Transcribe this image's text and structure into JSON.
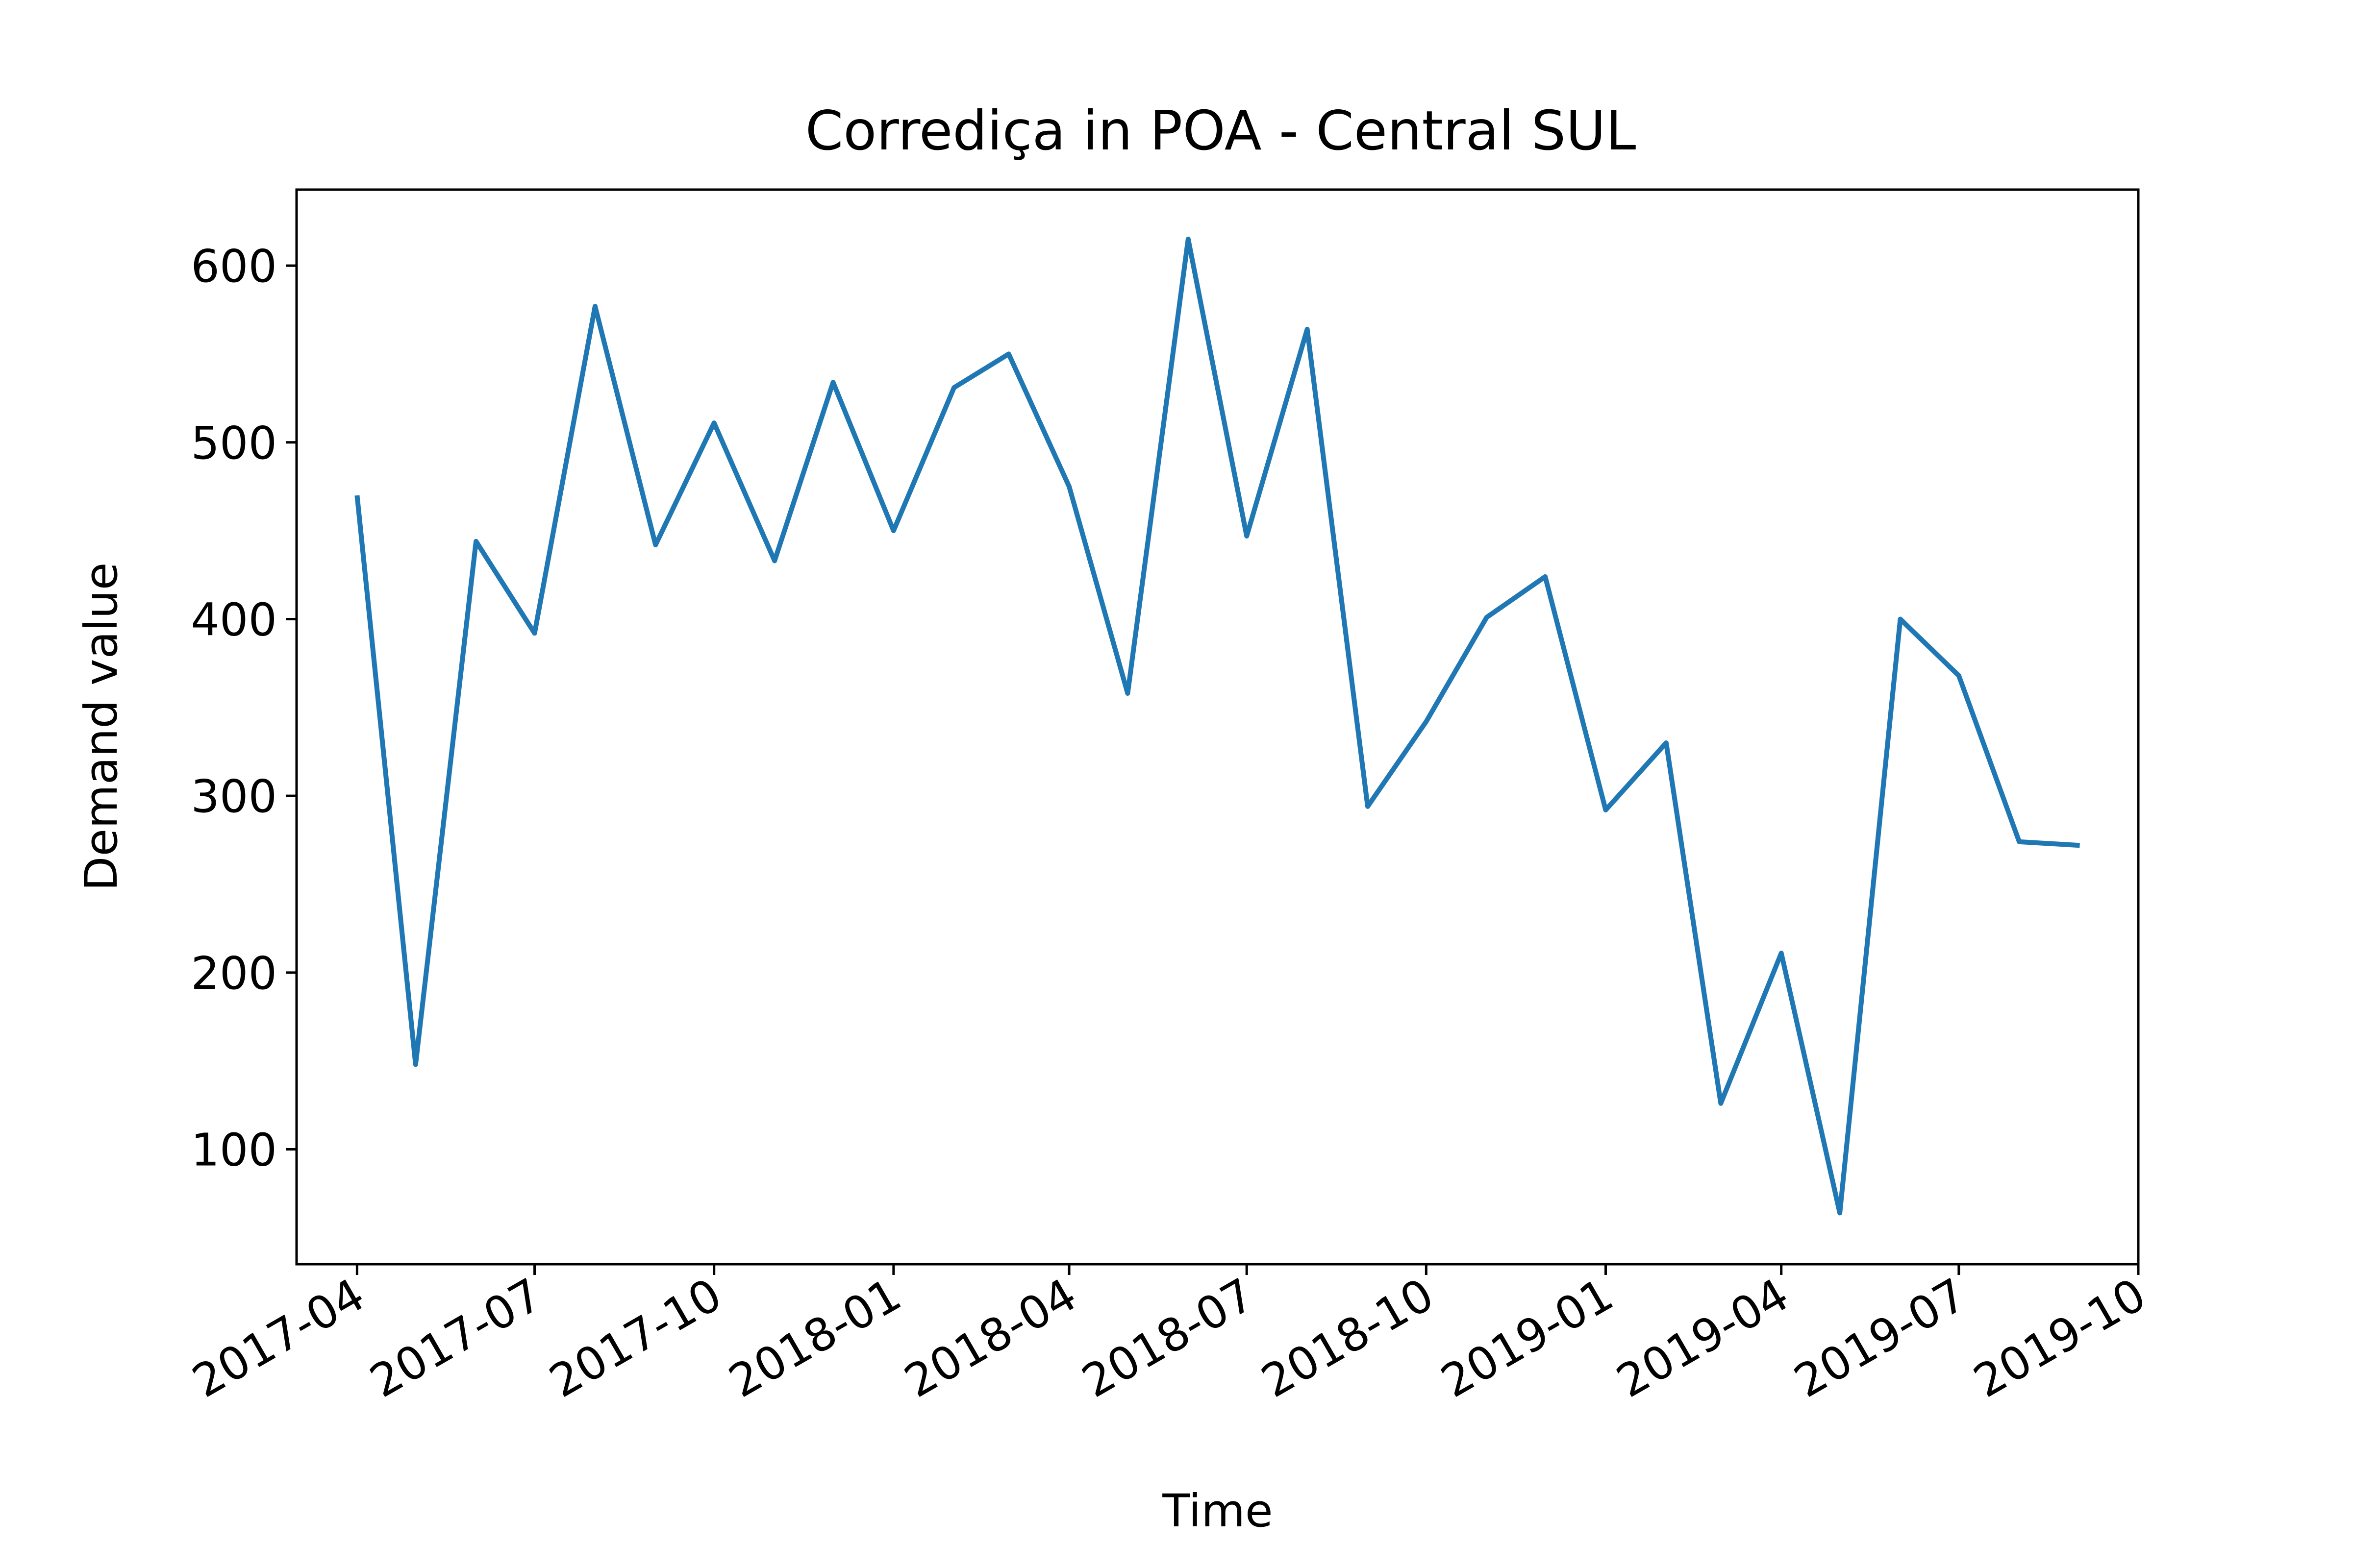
{
  "chart_data": {
    "type": "line",
    "title": "Corrediça in POA - Central SUL",
    "xlabel": "Time",
    "ylabel": "Demand value",
    "xlim": [
      "2017-03-01",
      "2019-10-01"
    ],
    "ylim": [
      35,
      643
    ],
    "x_ticks": [
      "2017-04",
      "2017-07",
      "2017-10",
      "2018-01",
      "2018-04",
      "2018-07",
      "2018-10",
      "2019-01",
      "2019-04",
      "2019-07",
      "2019-10"
    ],
    "y_ticks": [
      100,
      200,
      300,
      400,
      500,
      600
    ],
    "grid": false,
    "line_color": "#1f77b4",
    "series": [
      {
        "x": [
          "2017-04-01",
          "2017-05-01",
          "2017-06-01",
          "2017-07-01",
          "2017-08-01",
          "2017-09-01",
          "2017-10-01",
          "2017-11-01",
          "2017-12-01",
          "2018-01-01",
          "2018-02-01",
          "2018-03-01",
          "2018-04-01",
          "2018-05-01",
          "2018-06-01",
          "2018-07-01",
          "2018-08-01",
          "2018-09-01",
          "2018-10-01",
          "2018-11-01",
          "2018-12-01",
          "2019-01-01",
          "2019-02-01",
          "2019-03-01",
          "2019-04-01",
          "2019-05-01",
          "2019-06-01",
          "2019-07-01",
          "2019-08-01",
          "2019-09-01"
        ],
        "values": [
          470,
          148,
          444,
          392,
          577,
          442,
          511,
          433,
          534,
          450,
          531,
          550,
          475,
          358,
          615,
          447,
          564,
          294,
          342,
          401,
          424,
          292,
          330,
          126,
          211,
          64,
          400,
          368,
          274,
          272
        ]
      }
    ]
  }
}
